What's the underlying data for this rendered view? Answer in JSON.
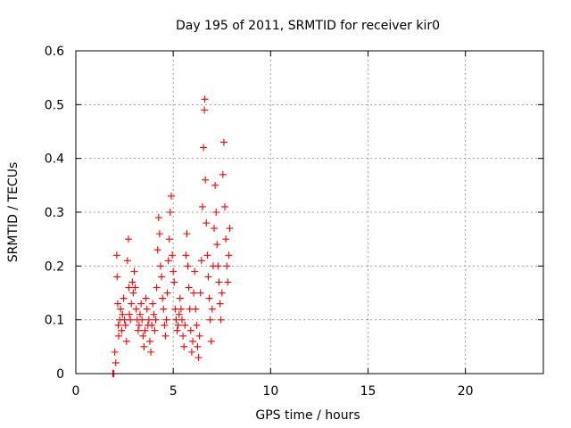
{
  "chart_data": {
    "type": "scatter",
    "title": "Day 195 of 2011, SRMTID for receiver kir0",
    "xlabel": "GPS time / hours",
    "ylabel": "SRMTID / TECUs",
    "xlim": [
      0,
      24
    ],
    "ylim": [
      0,
      0.6
    ],
    "x_ticks": [
      0,
      5,
      10,
      15,
      20
    ],
    "y_ticks": [
      0,
      0.1,
      0.2,
      0.3,
      0.4,
      0.5,
      0.6
    ],
    "x_tick_labels": [
      "0",
      "5",
      "10",
      "15",
      "20"
    ],
    "y_tick_labels": [
      "0",
      "0.1",
      "0.2",
      "0.3",
      "0.4",
      "0.5",
      "0.6"
    ],
    "grid": true,
    "marker": "plus",
    "color": "#ff0000",
    "series": [
      {
        "points": [
          [
            1.9,
            0.0
          ],
          [
            1.95,
            0.0
          ],
          [
            2.0,
            0.04
          ],
          [
            2.05,
            0.02
          ],
          [
            2.1,
            0.22
          ],
          [
            2.12,
            0.18
          ],
          [
            2.15,
            0.13
          ],
          [
            2.18,
            0.09
          ],
          [
            2.2,
            0.07
          ],
          [
            2.25,
            0.1
          ],
          [
            2.3,
            0.12
          ],
          [
            2.35,
            0.08
          ],
          [
            2.4,
            0.11
          ],
          [
            2.45,
            0.14
          ],
          [
            2.5,
            0.1
          ],
          [
            2.55,
            0.09
          ],
          [
            2.6,
            0.06
          ],
          [
            2.65,
            0.21
          ],
          [
            2.7,
            0.25
          ],
          [
            2.72,
            0.16
          ],
          [
            2.75,
            0.11
          ],
          [
            2.8,
            0.1
          ],
          [
            2.85,
            0.13
          ],
          [
            2.9,
            0.17
          ],
          [
            2.95,
            0.15
          ],
          [
            3.0,
            0.19
          ],
          [
            3.05,
            0.16
          ],
          [
            3.1,
            0.12
          ],
          [
            3.15,
            0.1
          ],
          [
            3.2,
            0.08
          ],
          [
            3.25,
            0.09
          ],
          [
            3.3,
            0.11
          ],
          [
            3.35,
            0.13
          ],
          [
            3.4,
            0.1
          ],
          [
            3.45,
            0.07
          ],
          [
            3.5,
            0.05
          ],
          [
            3.55,
            0.08
          ],
          [
            3.6,
            0.14
          ],
          [
            3.65,
            0.12
          ],
          [
            3.7,
            0.09
          ],
          [
            3.75,
            0.1
          ],
          [
            3.8,
            0.06
          ],
          [
            3.85,
            0.04
          ],
          [
            3.9,
            0.09
          ],
          [
            3.95,
            0.13
          ],
          [
            4.0,
            0.11
          ],
          [
            4.05,
            0.08
          ],
          [
            4.1,
            0.1
          ],
          [
            4.15,
            0.16
          ],
          [
            4.2,
            0.23
          ],
          [
            4.25,
            0.29
          ],
          [
            4.3,
            0.26
          ],
          [
            4.35,
            0.2
          ],
          [
            4.4,
            0.18
          ],
          [
            4.45,
            0.14
          ],
          [
            4.5,
            0.12
          ],
          [
            4.55,
            0.09
          ],
          [
            4.6,
            0.07
          ],
          [
            4.65,
            0.1
          ],
          [
            4.7,
            0.15
          ],
          [
            4.75,
            0.21
          ],
          [
            4.8,
            0.25
          ],
          [
            4.85,
            0.3
          ],
          [
            4.9,
            0.33
          ],
          [
            4.95,
            0.22
          ],
          [
            5.0,
            0.19
          ],
          [
            5.05,
            0.17
          ],
          [
            5.1,
            0.12
          ],
          [
            5.15,
            0.1
          ],
          [
            5.2,
            0.08
          ],
          [
            5.25,
            0.09
          ],
          [
            5.3,
            0.11
          ],
          [
            5.35,
            0.14
          ],
          [
            5.4,
            0.12
          ],
          [
            5.45,
            0.1
          ],
          [
            5.5,
            0.07
          ],
          [
            5.55,
            0.05
          ],
          [
            5.6,
            0.09
          ],
          [
            5.65,
            0.22
          ],
          [
            5.7,
            0.26
          ],
          [
            5.75,
            0.2
          ],
          [
            5.8,
            0.16
          ],
          [
            5.85,
            0.12
          ],
          [
            5.9,
            0.08
          ],
          [
            5.95,
            0.04
          ],
          [
            6.0,
            0.06
          ],
          [
            6.05,
            0.15
          ],
          [
            6.1,
            0.19
          ],
          [
            6.15,
            0.12
          ],
          [
            6.2,
            0.09
          ],
          [
            6.25,
            0.05
          ],
          [
            6.3,
            0.03
          ],
          [
            6.35,
            0.07
          ],
          [
            6.4,
            0.15
          ],
          [
            6.45,
            0.21
          ],
          [
            6.5,
            0.31
          ],
          [
            6.55,
            0.42
          ],
          [
            6.6,
            0.49
          ],
          [
            6.62,
            0.51
          ],
          [
            6.65,
            0.36
          ],
          [
            6.7,
            0.28
          ],
          [
            6.75,
            0.22
          ],
          [
            6.8,
            0.18
          ],
          [
            6.85,
            0.14
          ],
          [
            6.9,
            0.1
          ],
          [
            6.95,
            0.06
          ],
          [
            7.0,
            0.12
          ],
          [
            7.05,
            0.2
          ],
          [
            7.1,
            0.27
          ],
          [
            7.15,
            0.35
          ],
          [
            7.2,
            0.3
          ],
          [
            7.25,
            0.24
          ],
          [
            7.3,
            0.2
          ],
          [
            7.35,
            0.17
          ],
          [
            7.4,
            0.13
          ],
          [
            7.45,
            0.1
          ],
          [
            7.5,
            0.15
          ],
          [
            7.55,
            0.37
          ],
          [
            7.6,
            0.43
          ],
          [
            7.65,
            0.31
          ],
          [
            7.7,
            0.25
          ],
          [
            7.75,
            0.2
          ],
          [
            7.8,
            0.17
          ],
          [
            7.85,
            0.22
          ],
          [
            7.9,
            0.27
          ]
        ]
      }
    ]
  }
}
